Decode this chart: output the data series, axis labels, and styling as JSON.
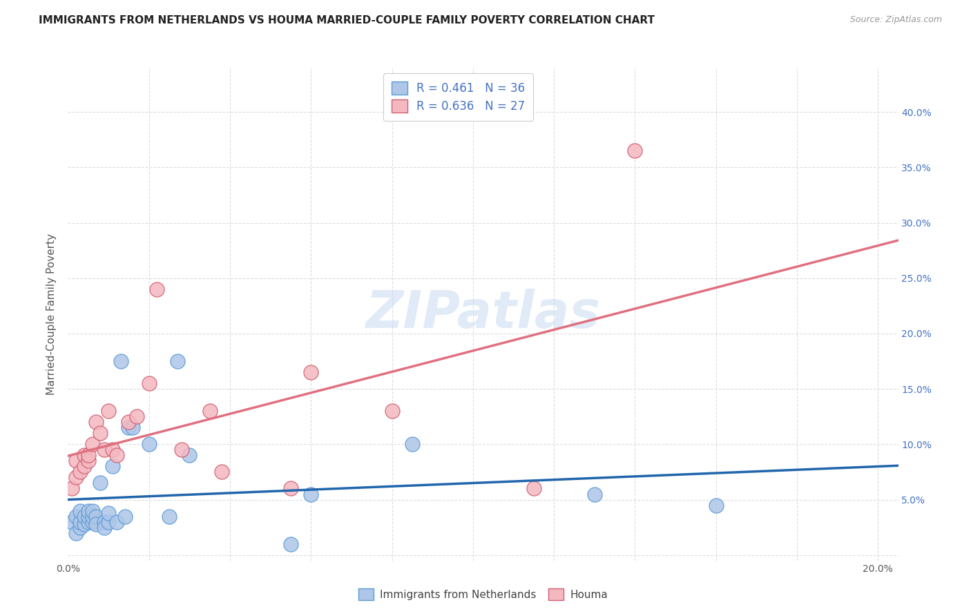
{
  "title": "IMMIGRANTS FROM NETHERLANDS VS HOUMA MARRIED-COUPLE FAMILY POVERTY CORRELATION CHART",
  "source": "Source: ZipAtlas.com",
  "ylabel": "Married-Couple Family Poverty",
  "xlim": [
    0.0,
    0.205
  ],
  "ylim": [
    -0.005,
    0.44
  ],
  "background_color": "#ffffff",
  "grid_color": "#dddddd",
  "series1_fill": "#aec6e8",
  "series1_edge": "#5b9bd5",
  "series2_fill": "#f4b8c1",
  "series2_edge": "#d06070",
  "line1_color": "#2166ac",
  "line2_color": "#e07080",
  "line2_dash_color": "#cccccc",
  "ytick_color": "#4472c4",
  "R1": 0.461,
  "N1": 36,
  "R2": 0.636,
  "N2": 27,
  "legend_label1": "Immigrants from Netherlands",
  "legend_label2": "Houma",
  "watermark_text": "ZIPatlas",
  "blue_x": [
    0.001,
    0.002,
    0.002,
    0.003,
    0.003,
    0.003,
    0.004,
    0.004,
    0.005,
    0.005,
    0.005,
    0.006,
    0.006,
    0.006,
    0.007,
    0.007,
    0.008,
    0.009,
    0.009,
    0.01,
    0.01,
    0.011,
    0.012,
    0.013,
    0.014,
    0.015,
    0.016,
    0.02,
    0.025,
    0.027,
    0.03,
    0.055,
    0.06,
    0.085,
    0.13,
    0.16
  ],
  "blue_y": [
    0.03,
    0.02,
    0.035,
    0.025,
    0.03,
    0.04,
    0.028,
    0.035,
    0.03,
    0.035,
    0.04,
    0.03,
    0.035,
    0.04,
    0.035,
    0.028,
    0.065,
    0.03,
    0.025,
    0.03,
    0.038,
    0.08,
    0.03,
    0.175,
    0.035,
    0.115,
    0.115,
    0.1,
    0.035,
    0.175,
    0.09,
    0.01,
    0.055,
    0.1,
    0.055,
    0.045
  ],
  "pink_x": [
    0.001,
    0.002,
    0.002,
    0.003,
    0.004,
    0.004,
    0.005,
    0.005,
    0.006,
    0.007,
    0.008,
    0.009,
    0.01,
    0.011,
    0.012,
    0.015,
    0.017,
    0.02,
    0.022,
    0.028,
    0.035,
    0.038,
    0.055,
    0.06,
    0.08,
    0.115,
    0.14
  ],
  "pink_y": [
    0.06,
    0.07,
    0.085,
    0.075,
    0.08,
    0.09,
    0.085,
    0.09,
    0.1,
    0.12,
    0.11,
    0.095,
    0.13,
    0.095,
    0.09,
    0.12,
    0.125,
    0.155,
    0.24,
    0.095,
    0.13,
    0.075,
    0.06,
    0.165,
    0.13,
    0.06,
    0.365
  ]
}
